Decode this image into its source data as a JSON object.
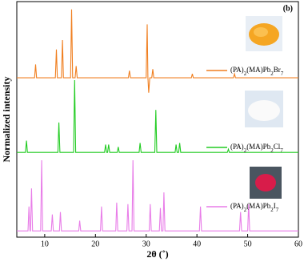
{
  "chart_data": {
    "type": "line",
    "panel_label": "(b)",
    "x_label": "2θ (˚)",
    "y_label": "Normalized intensity",
    "xlim": [
      4.5,
      60
    ],
    "xticks": [
      10,
      20,
      30,
      40,
      50,
      60
    ],
    "ylim": [
      0,
      3
    ],
    "series": [
      {
        "name": "(PA)2(MA)Pb2Br7",
        "color": "#f07f20",
        "x": [
          4.5,
          8.0,
          8.2,
          8.4,
          12.1,
          12.3,
          12.5,
          13.3,
          13.5,
          13.7,
          15.1,
          15.3,
          15.5,
          16.0,
          16.2,
          16.4,
          26.5,
          26.7,
          26.9,
          30.0,
          30.2,
          30.35,
          30.5,
          30.7,
          31.1,
          31.3,
          31.5,
          38.9,
          39.1,
          39.3,
          47.2,
          47.4,
          47.6,
          60
        ],
        "values": [
          2.03,
          2.03,
          2.2,
          2.03,
          2.03,
          2.39,
          2.03,
          2.03,
          2.51,
          2.03,
          2.03,
          2.9,
          2.03,
          2.03,
          2.18,
          2.03,
          2.03,
          2.12,
          2.03,
          2.03,
          2.71,
          2.03,
          1.84,
          2.03,
          2.03,
          2.14,
          2.03,
          2.03,
          2.08,
          2.03,
          2.03,
          2.08,
          2.03,
          2.03
        ]
      },
      {
        "name": "(PA)2(MA)Pb2Cl7",
        "color": "#22cc22",
        "x": [
          4.5,
          6.2,
          6.4,
          6.6,
          12.6,
          12.8,
          13.0,
          15.7,
          15.9,
          16.1,
          21.8,
          22.0,
          22.2,
          22.4,
          22.6,
          22.8,
          24.3,
          24.5,
          24.7,
          28.6,
          28.8,
          29.0,
          31.7,
          31.9,
          32.1,
          35.7,
          35.9,
          36.1,
          36.4,
          36.6,
          36.8,
          46.0,
          46.2,
          46.4,
          60
        ],
        "values": [
          1.08,
          1.08,
          1.23,
          1.08,
          1.08,
          1.46,
          1.08,
          1.08,
          2.0,
          1.08,
          1.08,
          1.18,
          1.08,
          1.08,
          1.18,
          1.08,
          1.08,
          1.15,
          1.08,
          1.08,
          1.2,
          1.08,
          1.08,
          1.62,
          1.08,
          1.08,
          1.18,
          1.08,
          1.08,
          1.2,
          1.08,
          1.08,
          1.12,
          1.08,
          1.08
        ]
      },
      {
        "name": "(PA)2(MA)Pb2I7",
        "color": "#e87de8",
        "x": [
          4.5,
          6.7,
          6.9,
          7.1,
          7.2,
          7.4,
          7.6,
          9.2,
          9.4,
          9.6,
          11.3,
          11.5,
          11.7,
          12.9,
          13.1,
          13.3,
          16.7,
          16.9,
          17.1,
          21.0,
          21.2,
          21.4,
          24.0,
          24.2,
          24.4,
          26.2,
          26.4,
          26.6,
          27.2,
          27.4,
          27.6,
          30.6,
          30.8,
          31.0,
          32.6,
          32.8,
          33.0,
          33.3,
          33.5,
          33.7,
          40.5,
          40.7,
          40.9,
          48.4,
          48.6,
          48.8,
          50.0,
          50.2,
          50.4,
          60
        ],
        "values": [
          0.08,
          0.08,
          0.39,
          0.08,
          0.08,
          0.62,
          0.08,
          0.08,
          0.98,
          0.08,
          0.08,
          0.29,
          0.08,
          0.08,
          0.32,
          0.08,
          0.08,
          0.21,
          0.08,
          0.08,
          0.39,
          0.08,
          0.08,
          0.44,
          0.08,
          0.08,
          0.42,
          0.08,
          0.08,
          0.98,
          0.08,
          0.08,
          0.42,
          0.08,
          0.08,
          0.37,
          0.08,
          0.08,
          0.57,
          0.08,
          0.08,
          0.39,
          0.08,
          0.08,
          0.32,
          0.08,
          0.08,
          0.42,
          0.08,
          0.08
        ]
      }
    ]
  }
}
